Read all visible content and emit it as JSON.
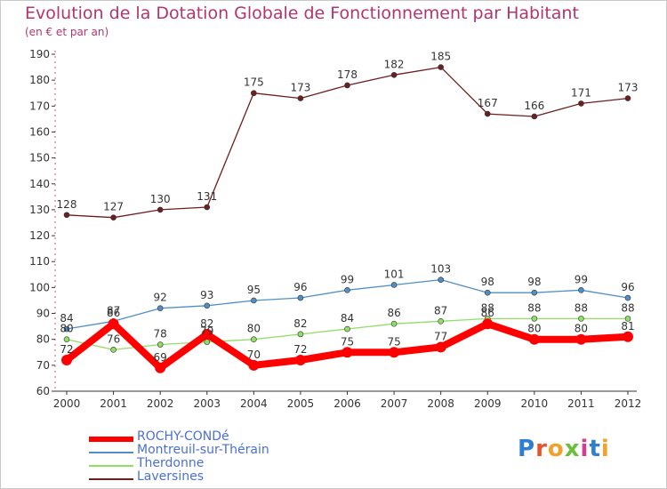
{
  "header": {
    "title": "Evolution de la Dotation Globale de Fonctionnement par Habitant",
    "subtitle": "(en € et par an)"
  },
  "logo": {
    "text": "Proxiti",
    "colors": [
      "#2f7fd0",
      "#e8542c",
      "#f2a12a",
      "#6cbf3c",
      "#d43c8c",
      "#2f7fd0",
      "#f2a12a"
    ]
  },
  "chart_data": {
    "type": "line",
    "x": [
      "2000",
      "2001",
      "2002",
      "2003",
      "2004",
      "2005",
      "2006",
      "2007",
      "2008",
      "2009",
      "2010",
      "2011",
      "2012"
    ],
    "ylim": [
      60,
      190
    ],
    "yticks": [
      60,
      70,
      80,
      90,
      100,
      110,
      120,
      130,
      140,
      150,
      160,
      170,
      180,
      190
    ],
    "grid": false,
    "legend_position": "bottom-left",
    "series": [
      {
        "name": "ROCHY-CONDé",
        "color": "#ff0000",
        "values": [
          72,
          86,
          69,
          82,
          70,
          72,
          75,
          75,
          77,
          86,
          80,
          80,
          81
        ],
        "labels": [
          "72",
          "86",
          "69",
          "82",
          "70",
          "72",
          "75",
          "75",
          "77",
          "86",
          "80",
          "80",
          "81"
        ]
      },
      {
        "name": "Montreuil-sur-Thérain",
        "color": "#4f8fc6",
        "values": [
          84,
          87,
          92,
          93,
          95,
          96,
          99,
          101,
          103,
          98,
          98,
          99,
          96
        ],
        "labels": [
          "84",
          "87",
          "92",
          "93",
          "95",
          "96",
          "99",
          "101",
          "103",
          "98",
          "98",
          "99",
          "96"
        ]
      },
      {
        "name": "Therdonne",
        "color": "#90de66",
        "values": [
          80,
          76,
          78,
          79,
          80,
          82,
          84,
          86,
          87,
          88,
          88,
          88,
          88
        ],
        "labels": [
          "80",
          "76",
          "78",
          "79",
          "80",
          "82",
          "84",
          "86",
          "87",
          "88",
          "88",
          "88",
          "88"
        ]
      },
      {
        "name": "Laversines",
        "color": "#6e1e1e",
        "values": [
          128,
          127,
          130,
          131,
          175,
          173,
          178,
          182,
          185,
          167,
          166,
          171,
          173
        ],
        "labels": [
          "128",
          "127",
          "130",
          "131",
          "175",
          "173",
          "178",
          "182",
          "185",
          "167",
          "166",
          "171",
          "173"
        ]
      }
    ]
  }
}
